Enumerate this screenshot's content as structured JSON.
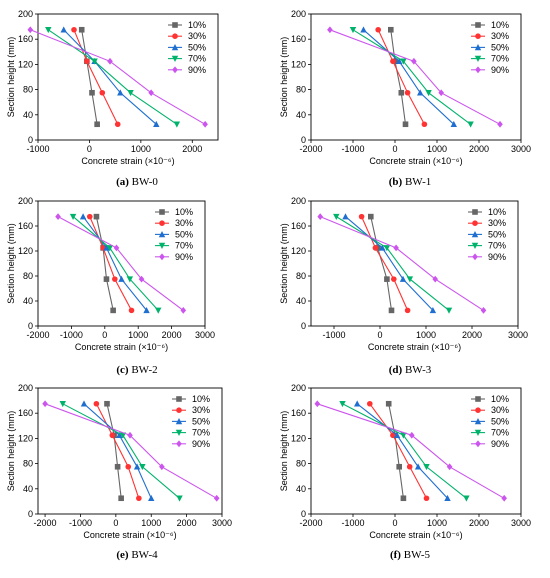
{
  "figure": {
    "captions": [
      {
        "letter": "(a)",
        "name": "BW-0"
      },
      {
        "letter": "(b)",
        "name": "BW-1"
      },
      {
        "letter": "(c)",
        "name": "BW-2"
      },
      {
        "letter": "(d)",
        "name": "BW-3"
      },
      {
        "letter": "(e)",
        "name": "BW-4"
      },
      {
        "letter": "(f)",
        "name": "BW-5"
      }
    ]
  },
  "chart_data": [
    {
      "type": "line",
      "title": "",
      "xlabel": "Concrete strain (×10⁻⁶)",
      "ylabel": "Section height (mm)",
      "xlim": [
        -1000,
        2500
      ],
      "xticks": [
        -1000,
        0,
        1000,
        2000
      ],
      "ylim": [
        0,
        200
      ],
      "yticks": [
        0,
        40,
        80,
        120,
        160,
        200
      ],
      "y": [
        25,
        75,
        125,
        175
      ],
      "legend_position": "top-right",
      "colors": [
        "#666666",
        "#ff3333",
        "#1f6fd0",
        "#00b36b",
        "#cc55ee"
      ],
      "series": [
        {
          "name": "10%",
          "marker": "square",
          "x": [
            150,
            50,
            -50,
            -150
          ]
        },
        {
          "name": "30%",
          "marker": "circle",
          "x": [
            550,
            250,
            -50,
            -300
          ]
        },
        {
          "name": "50%",
          "marker": "triangle-up",
          "x": [
            1300,
            600,
            100,
            -500
          ]
        },
        {
          "name": "70%",
          "marker": "triangle-down",
          "x": [
            1700,
            800,
            100,
            -800
          ]
        },
        {
          "name": "90%",
          "marker": "diamond",
          "x": [
            2250,
            1200,
            400,
            -1150
          ]
        }
      ]
    },
    {
      "type": "line",
      "title": "",
      "xlabel": "Concrete strain (×10⁻⁶)",
      "ylabel": "Section height (mm)",
      "xlim": [
        -2000,
        3000
      ],
      "xticks": [
        -2000,
        -1000,
        0,
        1000,
        2000,
        3000
      ],
      "ylim": [
        0,
        200
      ],
      "yticks": [
        0,
        40,
        80,
        120,
        160,
        200
      ],
      "y": [
        25,
        75,
        125,
        175
      ],
      "legend_position": "top-right",
      "colors": [
        "#666666",
        "#ff3333",
        "#1f6fd0",
        "#00b36b",
        "#cc55ee"
      ],
      "series": [
        {
          "name": "10%",
          "marker": "square",
          "x": [
            250,
            150,
            0,
            -100
          ]
        },
        {
          "name": "30%",
          "marker": "circle",
          "x": [
            700,
            300,
            -50,
            -400
          ]
        },
        {
          "name": "50%",
          "marker": "triangle-up",
          "x": [
            1400,
            600,
            100,
            -750
          ]
        },
        {
          "name": "70%",
          "marker": "triangle-down",
          "x": [
            1800,
            800,
            200,
            -1000
          ]
        },
        {
          "name": "90%",
          "marker": "diamond",
          "x": [
            2500,
            1100,
            450,
            -1550
          ]
        }
      ]
    },
    {
      "type": "line",
      "title": "",
      "xlabel": "Concrete strain (×10⁻⁶)",
      "ylabel": "Section height (mm)",
      "xlim": [
        -2000,
        3000
      ],
      "xticks": [
        -2000,
        -1000,
        0,
        1000,
        2000,
        3000
      ],
      "ylim": [
        0,
        200
      ],
      "yticks": [
        0,
        40,
        80,
        120,
        160,
        200
      ],
      "y": [
        25,
        75,
        125,
        175
      ],
      "legend_position": "top-right",
      "colors": [
        "#666666",
        "#ff3333",
        "#1f6fd0",
        "#00b36b",
        "#cc55ee"
      ],
      "series": [
        {
          "name": "10%",
          "marker": "square",
          "x": [
            250,
            50,
            -50,
            -250
          ]
        },
        {
          "name": "30%",
          "marker": "circle",
          "x": [
            800,
            300,
            -50,
            -450
          ]
        },
        {
          "name": "50%",
          "marker": "triangle-up",
          "x": [
            1250,
            500,
            50,
            -650
          ]
        },
        {
          "name": "70%",
          "marker": "triangle-down",
          "x": [
            1600,
            750,
            150,
            -950
          ]
        },
        {
          "name": "90%",
          "marker": "diamond",
          "x": [
            2350,
            1100,
            350,
            -1400
          ]
        }
      ]
    },
    {
      "type": "line",
      "title": "",
      "xlabel": "Concrete strain (×10⁻⁶)",
      "ylabel": "Section height (mm)",
      "xlim": [
        -1500,
        3000
      ],
      "xticks": [
        -1000,
        0,
        1000,
        2000,
        3000
      ],
      "ylim": [
        0,
        200
      ],
      "yticks": [
        0,
        40,
        80,
        120,
        160,
        200
      ],
      "y": [
        25,
        75,
        125,
        175
      ],
      "legend_position": "top-right",
      "colors": [
        "#666666",
        "#ff3333",
        "#1f6fd0",
        "#00b36b",
        "#cc55ee"
      ],
      "series": [
        {
          "name": "10%",
          "marker": "square",
          "x": [
            250,
            150,
            -50,
            -200
          ]
        },
        {
          "name": "30%",
          "marker": "circle",
          "x": [
            600,
            300,
            -100,
            -400
          ]
        },
        {
          "name": "50%",
          "marker": "triangle-up",
          "x": [
            1150,
            500,
            50,
            -750
          ]
        },
        {
          "name": "70%",
          "marker": "triangle-down",
          "x": [
            1500,
            650,
            150,
            -950
          ]
        },
        {
          "name": "90%",
          "marker": "diamond",
          "x": [
            2250,
            1200,
            350,
            -1300
          ]
        }
      ]
    },
    {
      "type": "line",
      "title": "",
      "xlabel": "Concrete strain (×10⁻⁶)",
      "ylabel": "Section height (mm)",
      "xlim": [
        -2200,
        3000
      ],
      "xticks": [
        -2000,
        -1000,
        0,
        1000,
        2000,
        3000
      ],
      "ylim": [
        0,
        200
      ],
      "yticks": [
        0,
        40,
        80,
        120,
        160,
        200
      ],
      "y": [
        25,
        75,
        125,
        175
      ],
      "legend_position": "top-right",
      "colors": [
        "#666666",
        "#ff3333",
        "#1f6fd0",
        "#00b36b",
        "#cc55ee"
      ],
      "series": [
        {
          "name": "10%",
          "marker": "square",
          "x": [
            150,
            50,
            -50,
            -250
          ]
        },
        {
          "name": "30%",
          "marker": "circle",
          "x": [
            650,
            350,
            -100,
            -550
          ]
        },
        {
          "name": "50%",
          "marker": "triangle-up",
          "x": [
            1000,
            600,
            100,
            -900
          ]
        },
        {
          "name": "70%",
          "marker": "triangle-down",
          "x": [
            1800,
            750,
            200,
            -1500
          ]
        },
        {
          "name": "90%",
          "marker": "diamond",
          "x": [
            2850,
            1300,
            400,
            -2000
          ]
        }
      ]
    },
    {
      "type": "line",
      "title": "",
      "xlabel": "Concrete strain (×10⁻⁶)",
      "ylabel": "Section height (mm)",
      "xlim": [
        -2000,
        3000
      ],
      "xticks": [
        -2000,
        -1000,
        0,
        1000,
        2000,
        3000
      ],
      "ylim": [
        0,
        200
      ],
      "yticks": [
        0,
        40,
        80,
        120,
        160,
        200
      ],
      "y": [
        25,
        75,
        125,
        175
      ],
      "legend_position": "top-right",
      "colors": [
        "#666666",
        "#ff3333",
        "#1f6fd0",
        "#00b36b",
        "#cc55ee"
      ],
      "series": [
        {
          "name": "10%",
          "marker": "square",
          "x": [
            200,
            100,
            0,
            -150
          ]
        },
        {
          "name": "30%",
          "marker": "circle",
          "x": [
            750,
            350,
            -50,
            -600
          ]
        },
        {
          "name": "50%",
          "marker": "triangle-up",
          "x": [
            1250,
            550,
            50,
            -900
          ]
        },
        {
          "name": "70%",
          "marker": "triangle-down",
          "x": [
            1700,
            750,
            200,
            -1250
          ]
        },
        {
          "name": "90%",
          "marker": "diamond",
          "x": [
            2600,
            1300,
            400,
            -1850
          ]
        }
      ]
    }
  ]
}
